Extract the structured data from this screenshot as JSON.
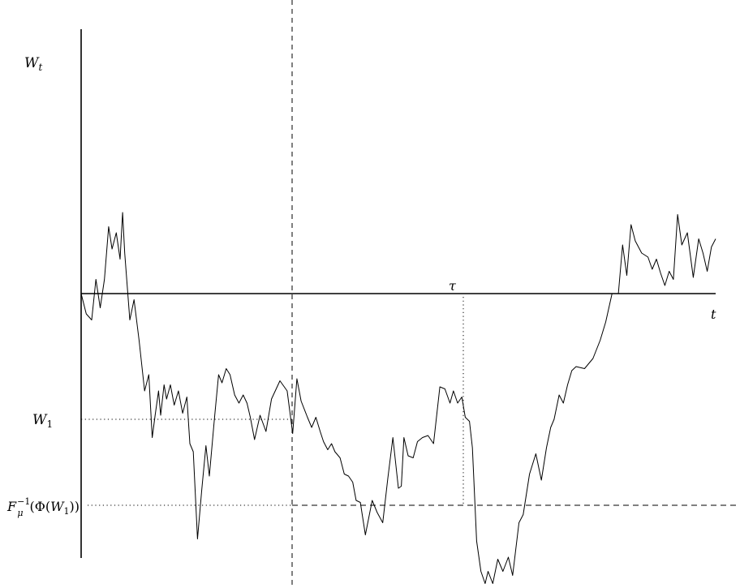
{
  "labels": {
    "y_axis_name": "W",
    "y_axis_sub": "t",
    "x_axis": "t",
    "tau": "τ",
    "w1_name": "W",
    "w1_sub": "1",
    "quantile_F": "F",
    "quantile_sub": "μ",
    "quantile_sup": "−1",
    "quantile_open": "(Φ(",
    "quantile_close": "))"
  },
  "colors": {
    "line": "#000000",
    "background": "#ffffff"
  },
  "chart_data": {
    "type": "line",
    "title": "",
    "xlabel": "t",
    "ylabel": "W_t",
    "xlim": [
      0,
      1.5
    ],
    "ylim": [
      -1.3,
      1.3
    ],
    "grid": false,
    "reference_lines": {
      "vertical_dashed_t": 0.5,
      "tau_t": 0.906,
      "W1_value": -0.62,
      "quantile_value": -1.04
    },
    "series": [
      {
        "name": "",
        "x": [
          0.0,
          0.012,
          0.025,
          0.035,
          0.045,
          0.055,
          0.065,
          0.073,
          0.083,
          0.092,
          0.098,
          0.103,
          0.115,
          0.125,
          0.137,
          0.15,
          0.16,
          0.168,
          0.175,
          0.183,
          0.188,
          0.196,
          0.202,
          0.211,
          0.22,
          0.23,
          0.24,
          0.25,
          0.257,
          0.265,
          0.275,
          0.285,
          0.295,
          0.303,
          0.315,
          0.325,
          0.333,
          0.343,
          0.352,
          0.363,
          0.373,
          0.383,
          0.392,
          0.4,
          0.41,
          0.423,
          0.437,
          0.45,
          0.47,
          0.487,
          0.5,
          0.51,
          0.52,
          0.535,
          0.545,
          0.555,
          0.565,
          0.573,
          0.583,
          0.592,
          0.6,
          0.612,
          0.622,
          0.632,
          0.642,
          0.65,
          0.66,
          0.672,
          0.688,
          0.7,
          0.713,
          0.725,
          0.737,
          0.75,
          0.757,
          0.763,
          0.773,
          0.785,
          0.795,
          0.807,
          0.82,
          0.833,
          0.848,
          0.86,
          0.872,
          0.88,
          0.89,
          0.9,
          0.908,
          0.918,
          0.925,
          0.935,
          0.945,
          0.955,
          0.962,
          0.973,
          0.985,
          0.997,
          1.01,
          1.02,
          1.035,
          1.045,
          1.06,
          1.075,
          1.088,
          1.1,
          1.11,
          1.118,
          1.13,
          1.14,
          1.15,
          1.16,
          1.17,
          1.19,
          1.21,
          1.227,
          1.24,
          1.255,
          1.27,
          1.28,
          1.29,
          1.3,
          1.31,
          1.325,
          1.34,
          1.35,
          1.36,
          1.37,
          1.38,
          1.39,
          1.4,
          1.41,
          1.42,
          1.433,
          1.447,
          1.46,
          1.47,
          1.48,
          1.49,
          1.5
        ],
        "y": [
          0.0,
          -0.1,
          -0.13,
          0.07,
          -0.07,
          0.07,
          0.33,
          0.22,
          0.3,
          0.17,
          0.4,
          0.2,
          -0.13,
          -0.03,
          -0.23,
          -0.48,
          -0.4,
          -0.71,
          -0.6,
          -0.48,
          -0.6,
          -0.45,
          -0.52,
          -0.45,
          -0.55,
          -0.48,
          -0.59,
          -0.51,
          -0.74,
          -0.78,
          -1.21,
          -0.97,
          -0.75,
          -0.9,
          -0.62,
          -0.4,
          -0.44,
          -0.37,
          -0.4,
          -0.5,
          -0.54,
          -0.5,
          -0.54,
          -0.61,
          -0.72,
          -0.6,
          -0.68,
          -0.52,
          -0.43,
          -0.48,
          -0.69,
          -0.42,
          -0.53,
          -0.61,
          -0.66,
          -0.61,
          -0.68,
          -0.73,
          -0.77,
          -0.74,
          -0.78,
          -0.81,
          -0.89,
          -0.9,
          -0.93,
          -1.02,
          -1.03,
          -1.19,
          -1.02,
          -1.08,
          -1.13,
          -0.91,
          -0.71,
          -0.96,
          -0.95,
          -0.71,
          -0.8,
          -0.81,
          -0.73,
          -0.71,
          -0.7,
          -0.74,
          -0.46,
          -0.47,
          -0.54,
          -0.48,
          -0.54,
          -0.51,
          -0.61,
          -0.63,
          -0.76,
          -1.22,
          -1.37,
          -1.43,
          -1.37,
          -1.43,
          -1.31,
          -1.37,
          -1.3,
          -1.39,
          -1.13,
          -1.09,
          -0.89,
          -0.79,
          -0.92,
          -0.76,
          -0.66,
          -0.62,
          -0.5,
          -0.54,
          -0.45,
          -0.38,
          -0.36,
          -0.37,
          -0.32,
          -0.23,
          -0.14,
          0.0,
          0.0,
          0.24,
          0.09,
          0.34,
          0.26,
          0.2,
          0.18,
          0.12,
          0.17,
          0.1,
          0.04,
          0.11,
          0.07,
          0.39,
          0.24,
          0.3,
          0.08,
          0.27,
          0.2,
          0.11,
          0.23,
          0.27
        ]
      }
    ]
  }
}
